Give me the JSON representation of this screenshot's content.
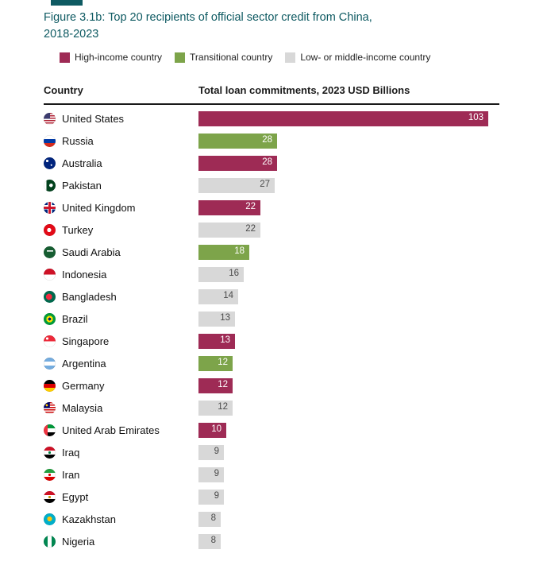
{
  "figure": {
    "title_line1": "Figure 3.1b: Top 20 recipients of official sector credit from China,",
    "title_line2": "2018-2023",
    "accent_color": "#0e5a62"
  },
  "legend": [
    {
      "key": "high",
      "label": "High-income country",
      "color": "#9e2b55"
    },
    {
      "key": "transitional",
      "label": "Transitional country",
      "color": "#7da44a"
    },
    {
      "key": "low_mid",
      "label": "Low- or middle-income country",
      "color": "#d8d8d8"
    }
  ],
  "table": {
    "country_header": "Country",
    "value_header": "Total loan commitments, 2023 USD Billions"
  },
  "chart_data": {
    "type": "bar",
    "orientation": "horizontal",
    "title": "Figure 3.1b: Top 20 recipients of official sector credit from China, 2018-2023",
    "xlabel": "Total loan commitments, 2023 USD Billions",
    "xlim": [
      0,
      103
    ],
    "grid": false,
    "legend_position": "top",
    "rows": [
      {
        "country": "United States",
        "value": 103,
        "category": "high"
      },
      {
        "country": "Russia",
        "value": 28,
        "category": "transitional"
      },
      {
        "country": "Australia",
        "value": 28,
        "category": "high"
      },
      {
        "country": "Pakistan",
        "value": 27,
        "category": "low_mid"
      },
      {
        "country": "United Kingdom",
        "value": 22,
        "category": "high"
      },
      {
        "country": "Turkey",
        "value": 22,
        "category": "low_mid"
      },
      {
        "country": "Saudi Arabia",
        "value": 18,
        "category": "transitional"
      },
      {
        "country": "Indonesia",
        "value": 16,
        "category": "low_mid"
      },
      {
        "country": "Bangladesh",
        "value": 14,
        "category": "low_mid"
      },
      {
        "country": "Brazil",
        "value": 13,
        "category": "low_mid"
      },
      {
        "country": "Singapore",
        "value": 13,
        "category": "high"
      },
      {
        "country": "Argentina",
        "value": 12,
        "category": "transitional"
      },
      {
        "country": "Germany",
        "value": 12,
        "category": "high"
      },
      {
        "country": "Malaysia",
        "value": 12,
        "category": "low_mid"
      },
      {
        "country": "United Arab Emirates",
        "value": 10,
        "category": "high"
      },
      {
        "country": "Iraq",
        "value": 9,
        "category": "low_mid"
      },
      {
        "country": "Iran",
        "value": 9,
        "category": "low_mid"
      },
      {
        "country": "Egypt",
        "value": 9,
        "category": "low_mid"
      },
      {
        "country": "Kazakhstan",
        "value": 8,
        "category": "low_mid"
      },
      {
        "country": "Nigeria",
        "value": 8,
        "category": "low_mid"
      }
    ]
  }
}
